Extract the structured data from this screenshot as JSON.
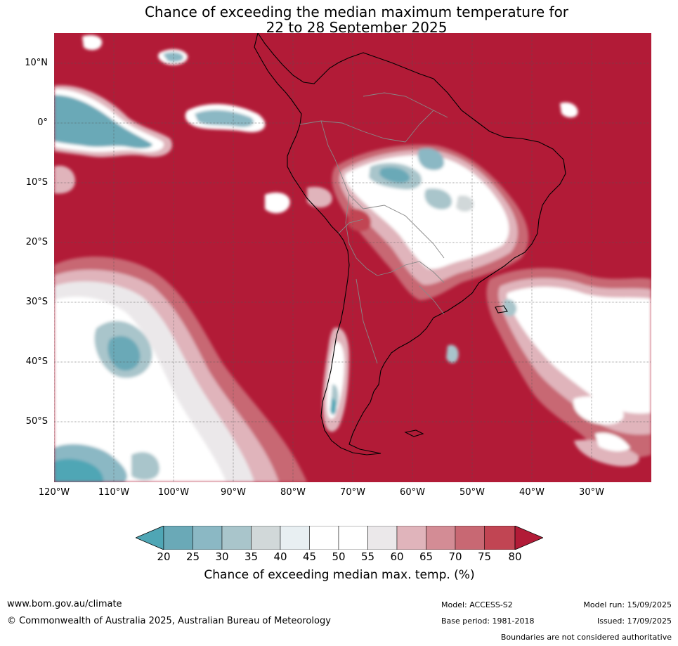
{
  "title": {
    "line1": "Chance of exceeding the median maximum temperature for",
    "line2": "22 to 28 September 2025"
  },
  "map": {
    "region": "South America and adjacent Pacific and Atlantic oceans",
    "background_color": "#b21b37",
    "latitude_labels": [
      "10°N",
      "0°",
      "10°S",
      "20°S",
      "30°S",
      "40°S",
      "50°S"
    ],
    "longitude_labels": [
      "120°W",
      "110°W",
      "100°W",
      "90°W",
      "80°W",
      "70°W",
      "60°W",
      "50°W",
      "40°W",
      "30°W"
    ]
  },
  "colorbar": {
    "label": "Chance of exceeding median max. temp. (%)",
    "ticks": [
      "20",
      "25",
      "30",
      "35",
      "40",
      "45",
      "50",
      "55",
      "60",
      "65",
      "70",
      "75",
      "80"
    ],
    "colors": {
      "below_20": "#4fa6b5",
      "c20_25": "#6aa9b7",
      "c25_30": "#8bb8c4",
      "c30_35": "#a9c5cb",
      "c35_40": "#d1d8d9",
      "c40_45": "#e8eff2",
      "c45_50": "#ffffff",
      "c50_55": "#ffffff",
      "c55_60": "#ebe8ea",
      "c60_65": "#e0b4bb",
      "c65_70": "#d38c95",
      "c70_75": "#c86873",
      "c75_80": "#c14553",
      "above_80": "#b21b37"
    }
  },
  "footer": {
    "url": "www.bom.gov.au/climate",
    "copyright": "© Commonwealth of Australia 2025, Australian Bureau of Meteorology",
    "model": "Model: ACCESS-S2",
    "base_period": "Base period: 1981-2018",
    "model_run": "Model run: 15/09/2025",
    "issued": "Issued: 17/09/2025",
    "disclaimer": "Boundaries are not considered authoritative"
  }
}
